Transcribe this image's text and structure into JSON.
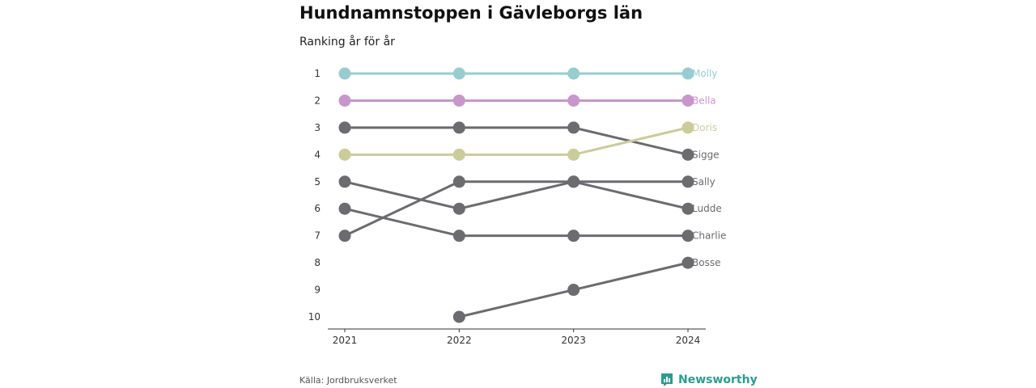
{
  "header": {
    "title": "Hundnamnstoppen i Gävleborgs län",
    "subtitle": "Ranking år för år"
  },
  "footer": {
    "source": "Källa: Jordbruksverket",
    "brand": "Newsworthy"
  },
  "colors": {
    "default_line": "#6b6b70",
    "axis": "#333333",
    "brand": "#2a9d8f"
  },
  "chart_data": {
    "type": "line",
    "title": "Hundnamnstoppen i Gävleborgs län",
    "subtitle": "Ranking år för år",
    "x": [
      "2021",
      "2022",
      "2023",
      "2024"
    ],
    "y_ticks": [
      "1",
      "2",
      "3",
      "4",
      "5",
      "6",
      "7",
      "8",
      "9",
      "10"
    ],
    "ylim": [
      1,
      10
    ],
    "y_inverted": true,
    "series": [
      {
        "name": "Molly",
        "values": [
          1,
          1,
          1,
          1
        ],
        "color": "#97cdd0"
      },
      {
        "name": "Bella",
        "values": [
          2,
          2,
          2,
          2
        ],
        "color": "#c996cc"
      },
      {
        "name": "Doris",
        "values": [
          4,
          4,
          4,
          3
        ],
        "color": "#cbcc9a"
      },
      {
        "name": "Sigge",
        "values": [
          3,
          3,
          3,
          4
        ],
        "color": "#6b6b70"
      },
      {
        "name": "Sally",
        "values": [
          7,
          5,
          5,
          5
        ],
        "color": "#6b6b70"
      },
      {
        "name": "Ludde",
        "values": [
          5,
          6,
          5,
          6
        ],
        "color": "#6b6b70"
      },
      {
        "name": "Charlie",
        "values": [
          6,
          7,
          7,
          7
        ],
        "color": "#6b6b70"
      },
      {
        "name": "Bosse",
        "values": [
          null,
          10,
          9,
          8
        ],
        "color": "#6b6b70"
      }
    ]
  }
}
